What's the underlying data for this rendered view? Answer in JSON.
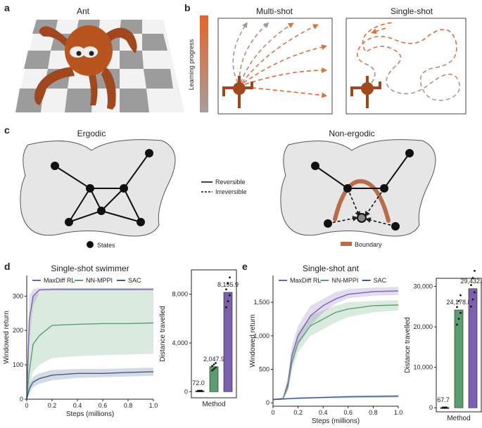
{
  "panels": {
    "a": {
      "label": "a",
      "title": "Ant"
    },
    "b": {
      "label": "b",
      "gradient_label": "Learning progress",
      "multi_title": "Multi-shot",
      "single_title": "Single-shot",
      "colors": {
        "early": "#a69e99",
        "late": "#e8632a"
      }
    },
    "c": {
      "label": "c",
      "ergodic_title": "Ergodic",
      "nonergodic_title": "Non-ergodic",
      "legend": {
        "reversible": "Reversible",
        "irreversible": "Irreversible",
        "states": "States",
        "boundary": "Boundary"
      }
    },
    "d": {
      "label": "d",
      "title": "Single-shot swimmer"
    },
    "e": {
      "label": "e",
      "title": "Single-shot ant"
    }
  },
  "colors": {
    "maxdiff": "#7b5fb0",
    "nnmppi": "#5a9e6f",
    "sac": "#3e5d8a",
    "boundary": "#b86c4a",
    "blob": "#e6e6e6"
  },
  "chart_data": [
    {
      "id": "d-line",
      "type": "line",
      "xlabel": "Steps (millions)",
      "ylabel": "Windowed return",
      "xlim": [
        0,
        1.0
      ],
      "ylim": [
        0,
        360
      ],
      "xticks": [
        "0",
        "0.2",
        "0.4",
        "0.6",
        "0.8",
        "1.0"
      ],
      "yticks": [
        "0",
        "100",
        "200",
        "300"
      ],
      "legend_placement": "top",
      "series": [
        {
          "name": "MaxDiff RL",
          "x": [
            0,
            0.02,
            0.05,
            0.1,
            0.2,
            0.4,
            0.6,
            0.8,
            1.0
          ],
          "y": [
            0,
            230,
            300,
            318,
            320,
            320,
            320,
            320,
            320
          ],
          "lo": [
            0,
            160,
            270,
            312,
            316,
            316,
            316,
            316,
            316
          ],
          "hi": [
            0,
            300,
            320,
            324,
            324,
            324,
            324,
            324,
            324
          ]
        },
        {
          "name": "NN-MPPI",
          "x": [
            0,
            0.02,
            0.05,
            0.1,
            0.15,
            0.2,
            0.4,
            0.6,
            0.8,
            1.0
          ],
          "y": [
            0,
            80,
            160,
            185,
            200,
            215,
            218,
            220,
            220,
            222
          ],
          "lo": [
            0,
            30,
            80,
            100,
            110,
            120,
            125,
            128,
            130,
            132
          ],
          "hi": [
            0,
            200,
            300,
            310,
            315,
            318,
            318,
            318,
            318,
            318
          ]
        },
        {
          "name": "SAC",
          "x": [
            0,
            0.02,
            0.05,
            0.1,
            0.2,
            0.4,
            0.6,
            0.8,
            1.0
          ],
          "y": [
            0,
            30,
            50,
            60,
            70,
            75,
            75,
            78,
            80
          ],
          "lo": [
            0,
            15,
            35,
            45,
            55,
            62,
            64,
            66,
            68
          ],
          "hi": [
            0,
            45,
            65,
            75,
            85,
            88,
            88,
            90,
            92
          ]
        }
      ]
    },
    {
      "id": "d-bar",
      "type": "bar",
      "xlabel": "Method",
      "ylabel": "Distance travelled",
      "ylim": [
        -500,
        10000
      ],
      "yticks": [
        "0",
        "4,000",
        "8,000"
      ],
      "categories": [
        "SAC",
        "NN-MPPI",
        "MaxDiff RL"
      ],
      "values": [
        72.0,
        2047.9,
        8155.9
      ],
      "value_labels": [
        "72.0",
        "2,047.9",
        "8,155.9"
      ]
    },
    {
      "id": "e-line",
      "type": "line",
      "xlabel": "Steps (millions)",
      "ylabel": "Windowed return",
      "xlim": [
        0,
        1.0
      ],
      "ylim": [
        -50,
        1900
      ],
      "xticks": [
        "0",
        "0.2",
        "0.4",
        "0.6",
        "0.8",
        "1.0"
      ],
      "yticks": [
        "0",
        "500",
        "1,000",
        "1,500"
      ],
      "legend_placement": "top",
      "series": [
        {
          "name": "MaxDiff RL",
          "x": [
            0,
            0.08,
            0.12,
            0.15,
            0.2,
            0.3,
            0.4,
            0.5,
            0.6,
            0.8,
            1.0
          ],
          "y": [
            50,
            60,
            300,
            700,
            1000,
            1300,
            1450,
            1550,
            1620,
            1660,
            1670
          ],
          "lo": [
            40,
            50,
            200,
            550,
            850,
            1150,
            1350,
            1480,
            1560,
            1600,
            1610
          ],
          "hi": [
            60,
            80,
            420,
            850,
            1150,
            1450,
            1550,
            1650,
            1700,
            1720,
            1730
          ]
        },
        {
          "name": "NN-MPPI",
          "x": [
            0,
            0.08,
            0.12,
            0.15,
            0.2,
            0.3,
            0.4,
            0.5,
            0.6,
            0.8,
            1.0
          ],
          "y": [
            50,
            60,
            250,
            600,
            900,
            1150,
            1250,
            1350,
            1400,
            1450,
            1460
          ],
          "lo": [
            40,
            50,
            180,
            480,
            760,
            1000,
            1100,
            1200,
            1280,
            1350,
            1380
          ],
          "hi": [
            60,
            80,
            350,
            740,
            1050,
            1300,
            1380,
            1450,
            1500,
            1520,
            1530
          ]
        },
        {
          "name": "SAC",
          "x": [
            0,
            0.2,
            0.4,
            0.6,
            0.8,
            1.0
          ],
          "y": [
            50,
            70,
            80,
            90,
            95,
            100
          ],
          "lo": [
            40,
            55,
            65,
            70,
            75,
            80
          ],
          "hi": [
            60,
            85,
            95,
            110,
            115,
            120
          ]
        }
      ]
    },
    {
      "id": "e-bar",
      "type": "bar",
      "xlabel": "Method",
      "ylabel": "Distance travelled",
      "ylim": [
        -1000,
        32000
      ],
      "yticks": [
        "0",
        "10,000",
        "20,000",
        "30,000"
      ],
      "categories": [
        "SAC",
        "NN-MPPI",
        "MaxDiff RL"
      ],
      "values": [
        67.7,
        24178.8,
        29432.4
      ],
      "value_labels": [
        "67.7",
        "24,178.8",
        "29,432.4"
      ]
    }
  ]
}
